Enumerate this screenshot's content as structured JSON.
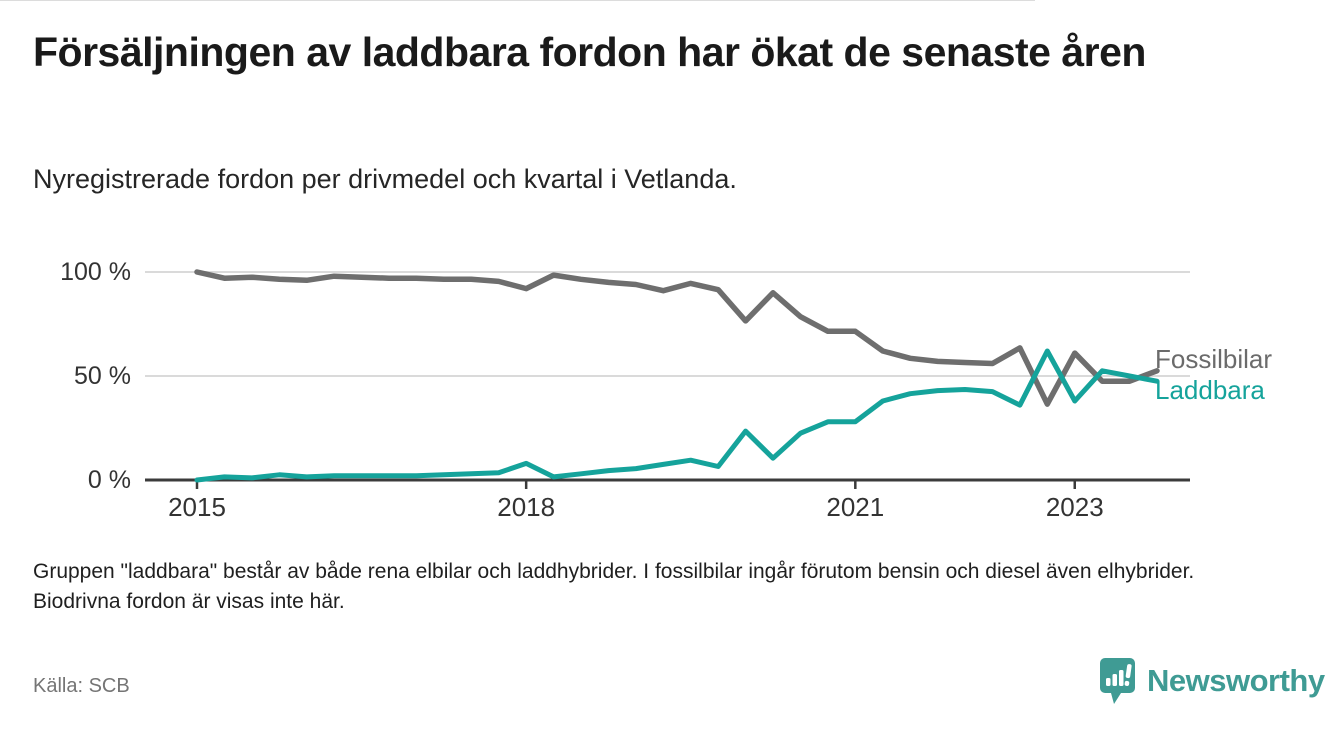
{
  "header": {
    "title": "Försäljningen av laddbara fordon har ökat de senaste åren",
    "subtitle": "Nyregistrerade fordon per drivmedel och kvartal i Vetlanda."
  },
  "chart_data": {
    "type": "line",
    "title": "Försäljningen av laddbara fordon har ökat de senaste åren",
    "subtitle": "Nyregistrerade fordon per drivmedel och kvartal i Vetlanda.",
    "unit": "%",
    "ylim": [
      0,
      100
    ],
    "yticks": [
      "100 %",
      "50 %",
      "0 %"
    ],
    "xticks": [
      "2015",
      "2018",
      "2021",
      "2023"
    ],
    "grid": "horizontal",
    "legend_position": "right-end-labels",
    "categories": [
      "2015 Q1",
      "2015 Q2",
      "2015 Q3",
      "2015 Q4",
      "2016 Q1",
      "2016 Q2",
      "2016 Q3",
      "2016 Q4",
      "2017 Q1",
      "2017 Q2",
      "2017 Q3",
      "2017 Q4",
      "2018 Q1",
      "2018 Q2",
      "2018 Q3",
      "2018 Q4",
      "2019 Q1",
      "2019 Q2",
      "2019 Q3",
      "2019 Q4",
      "2020 Q1",
      "2020 Q2",
      "2020 Q3",
      "2020 Q4",
      "2021 Q1",
      "2021 Q2",
      "2021 Q3",
      "2021 Q4",
      "2022 Q1",
      "2022 Q2",
      "2022 Q3",
      "2022 Q4",
      "2023 Q1",
      "2023 Q2",
      "2023 Q3",
      "2023 Q4"
    ],
    "series": [
      {
        "name": "Fossilbilar",
        "color": "#6e6e6e",
        "values": [
          100,
          97,
          97.5,
          96.5,
          96,
          98,
          97.5,
          97,
          97,
          96.5,
          96.5,
          95.5,
          92,
          98.5,
          96.5,
          95,
          94,
          91,
          94.5,
          91.5,
          76.5,
          90,
          78.5,
          71.5,
          71.5,
          62,
          58.5,
          57,
          56.5,
          56,
          63.5,
          36.5,
          61,
          47.5,
          47.5,
          52.5
        ]
      },
      {
        "name": "Laddbara",
        "color": "#15a39b",
        "values": [
          0,
          1.5,
          1,
          2.5,
          1.5,
          2,
          2,
          2,
          2,
          2.5,
          3,
          3.5,
          8,
          1.5,
          3,
          4.5,
          5.5,
          7.5,
          9.5,
          6.5,
          23.5,
          10.5,
          22.5,
          28,
          28,
          38,
          41.5,
          43,
          43.5,
          42.5,
          36,
          62,
          38,
          52.5,
          50,
          47.5
        ]
      }
    ]
  },
  "footnote": "Gruppen \"laddbara\" består av både rena elbilar och laddhybrider. I fossilbilar ingår förutom bensin och diesel även elhybrider. Biodrivna fordon är visas inte här.",
  "footer": {
    "source": "Källa: SCB",
    "brand": "Newsworthy",
    "brand_color": "#3f9b94"
  }
}
